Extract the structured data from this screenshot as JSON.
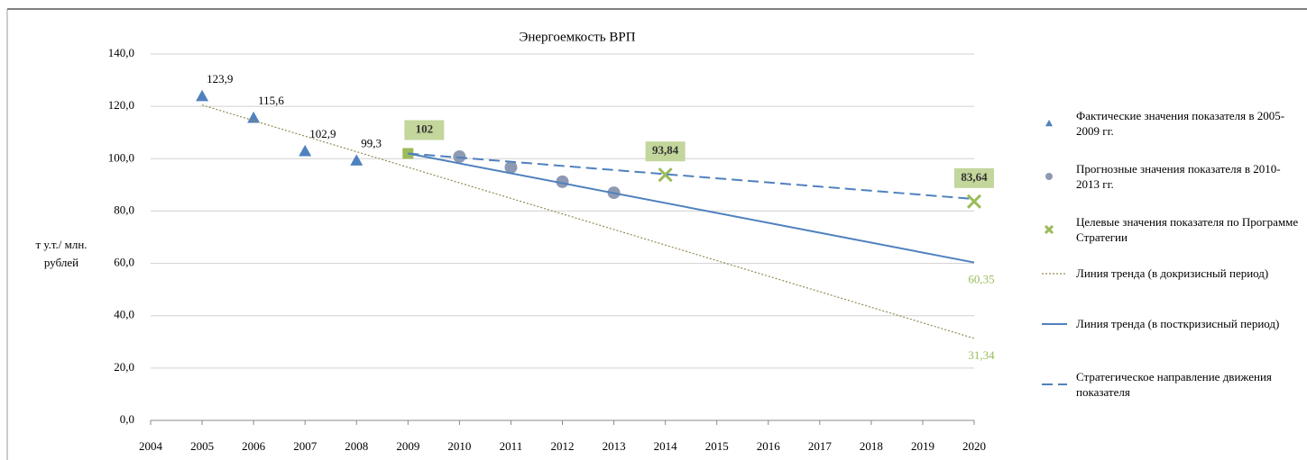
{
  "chart_data": {
    "type": "line",
    "title": "Энергоемкость ВРП",
    "y_label": "т у.т./ млн. рублей",
    "xlim": [
      2004,
      2020
    ],
    "xticks": [
      2004,
      2005,
      2006,
      2007,
      2008,
      2009,
      2010,
      2011,
      2012,
      2013,
      2014,
      2015,
      2016,
      2017,
      2018,
      2019,
      2020
    ],
    "ylim": [
      0,
      140
    ],
    "yticks": [
      {
        "value": 0,
        "label": "0,0"
      },
      {
        "value": 20,
        "label": "20,0"
      },
      {
        "value": 40,
        "label": "40,0"
      },
      {
        "value": 60,
        "label": "60,0"
      },
      {
        "value": 80,
        "label": "80,0"
      },
      {
        "value": 100,
        "label": "100,0"
      },
      {
        "value": 120,
        "label": "120,0"
      },
      {
        "value": 140,
        "label": "140,0"
      }
    ],
    "grid": true,
    "legend": "right",
    "series": [
      {
        "name": "Фактические значения показателя в 2005-2009 гг.",
        "color": "#4f81bd",
        "marker": "triangle",
        "x": [
          2005,
          2006,
          2007,
          2008
        ],
        "values": [
          123.9,
          115.6,
          102.9,
          99.3
        ],
        "value_labels": [
          "123,9",
          "115,6",
          "102,9",
          "99,3"
        ]
      },
      {
        "name": "Прогнозные значения показателя в 2010-2013 гг.",
        "color": "#8e9ab4",
        "marker": "circle",
        "x": [
          2010,
          2011,
          2012,
          2013
        ],
        "values": [
          100.8,
          96.7,
          91.2,
          87.0
        ]
      },
      {
        "name": "Целевые значения показателя по Программе Стратегии",
        "color": "#9bbb59",
        "marker": "x",
        "x": [
          2009,
          2014,
          2020
        ],
        "values": [
          102,
          93.84,
          83.64
        ],
        "value_labels": [
          "102",
          "93,84",
          "83,64"
        ]
      },
      {
        "name": "Линия тренда (в докризисный период)",
        "color": "#948a54",
        "line": "dotted",
        "x": [
          2005,
          2020
        ],
        "values": [
          120.5,
          31.34
        ],
        "value_labels": [
          null,
          "31,34"
        ]
      },
      {
        "name": "Линия тренда (в посткризисный период)",
        "color": "#4f81bd",
        "line": "solid",
        "x": [
          2009,
          2020
        ],
        "values": [
          102,
          60.35
        ],
        "value_labels": [
          null,
          "60,35"
        ]
      },
      {
        "name": "Стратегическое направление движения показателя",
        "color": "#4f81bd",
        "line": "dashed",
        "x": [
          2009,
          2020
        ],
        "values": [
          102,
          84.6
        ]
      }
    ]
  }
}
